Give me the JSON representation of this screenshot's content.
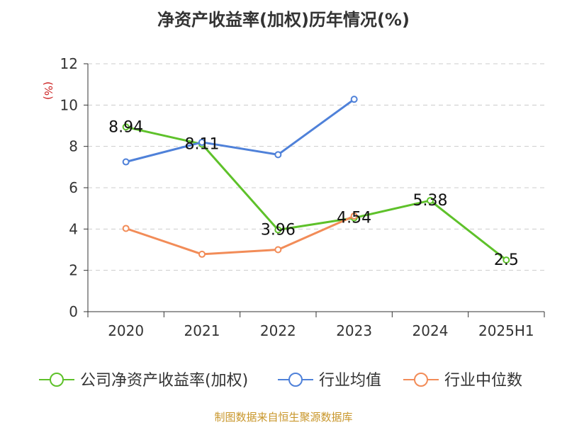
{
  "chart_data": {
    "type": "line",
    "title": "净资产收益率(加权)历年情况(%)",
    "ylabel": "(%)",
    "xlabel": "",
    "categories": [
      "2020",
      "2021",
      "2022",
      "2023",
      "2024",
      "2025H1"
    ],
    "ylim": [
      0,
      12
    ],
    "yticks": [
      0,
      2,
      4,
      6,
      8,
      10,
      12
    ],
    "grid": true,
    "legend_position": "bottom",
    "series": [
      {
        "name": "公司净资产收益率(加权)",
        "color": "#5ec12a",
        "values": [
          8.94,
          8.11,
          3.96,
          4.54,
          5.38,
          2.5
        ],
        "labels": [
          "8.94",
          "8.11",
          "3.96",
          "4.54",
          "5.38",
          "2.5"
        ]
      },
      {
        "name": "行业均值",
        "color": "#4f81d9",
        "values": [
          7.25,
          8.2,
          7.6,
          10.28,
          null,
          null
        ]
      },
      {
        "name": "行业中位数",
        "color": "#f28c58",
        "values": [
          4.03,
          2.78,
          3.0,
          4.63,
          null,
          null
        ]
      }
    ]
  },
  "source_note": "制图数据来自恒生聚源数据库"
}
